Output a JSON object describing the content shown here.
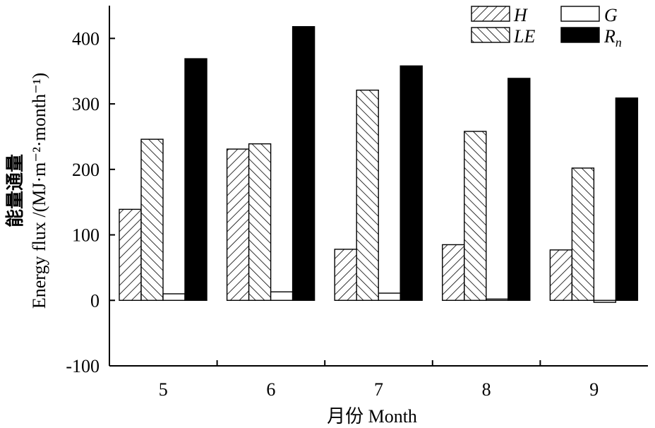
{
  "chart_data": {
    "type": "bar",
    "categories": [
      "5",
      "6",
      "7",
      "8",
      "9"
    ],
    "series": [
      {
        "name": "H",
        "values": [
          139,
          231,
          78,
          85,
          77
        ]
      },
      {
        "name": "LE",
        "values": [
          246,
          239,
          321,
          258,
          202
        ]
      },
      {
        "name": "G",
        "values": [
          10,
          13,
          11,
          2,
          -3
        ]
      },
      {
        "name": "Rn",
        "values": [
          369,
          418,
          358,
          339,
          309
        ]
      }
    ],
    "title": "",
    "xlabel": "月份 Month",
    "ylabel_cn": "能量通量",
    "ylabel_en": "Energy flux /(MJ·m⁻²·month⁻¹)",
    "ylim": [
      -100,
      450
    ],
    "yticks": [
      "-100",
      "0",
      "100",
      "200",
      "300",
      "400"
    ],
    "ytick_values": [
      -100,
      0,
      100,
      200,
      300,
      400
    ],
    "legend": {
      "placement": "top-right",
      "entries": [
        {
          "text": "H",
          "sub": "",
          "fill": "hatch-fwd"
        },
        {
          "text": "G",
          "sub": "",
          "fill": "white"
        },
        {
          "text": "LE",
          "sub": "",
          "fill": "hatch-back"
        },
        {
          "text": "R",
          "sub": "n",
          "fill": "black"
        }
      ]
    },
    "grid": false,
    "colors": {
      "stroke": "#000000",
      "background": "#ffffff",
      "solid": "#000000"
    }
  }
}
